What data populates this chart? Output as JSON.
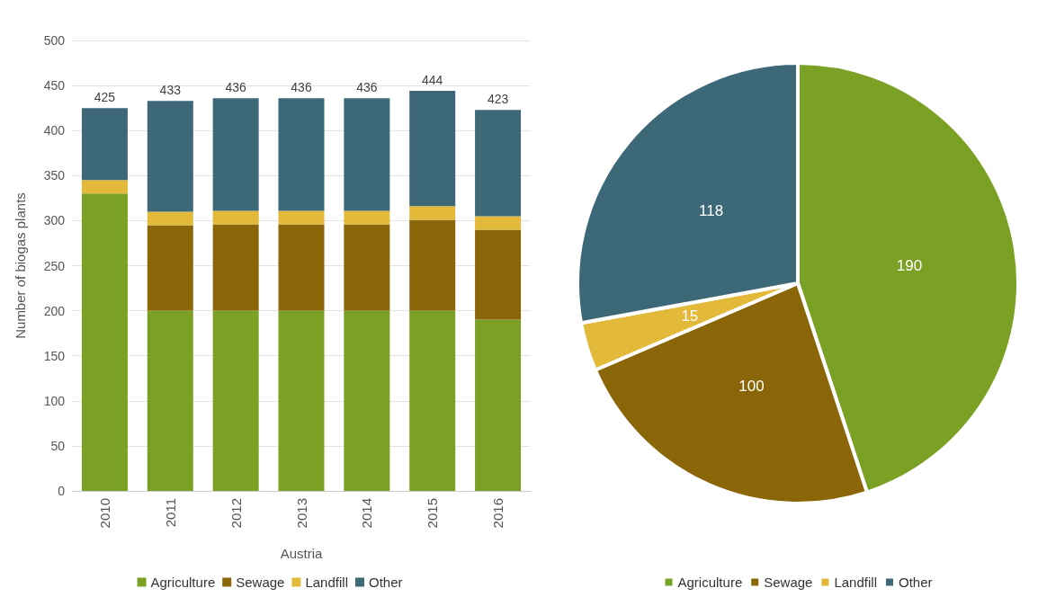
{
  "chart_data": [
    {
      "type": "bar",
      "stacked": true,
      "xlabel": "Austria",
      "ylabel": "Number of biogas plants",
      "categories": [
        "2010",
        "2011",
        "2012",
        "2013",
        "2014",
        "2015",
        "2016"
      ],
      "series": [
        {
          "name": "Agriculture",
          "color": "#7aa024",
          "values": [
            330,
            200,
            200,
            200,
            200,
            200,
            190
          ]
        },
        {
          "name": "Sewage",
          "color": "#8a6609",
          "values": [
            0,
            95,
            96,
            96,
            96,
            101,
            100
          ]
        },
        {
          "name": "Landfill",
          "color": "#e3b93a",
          "values": [
            15,
            15,
            15,
            15,
            15,
            15,
            15
          ]
        },
        {
          "name": "Other",
          "color": "#3d6878",
          "values": [
            80,
            123,
            125,
            125,
            125,
            128,
            118
          ]
        }
      ],
      "totals": [
        "425",
        "433",
        "436",
        "436",
        "436",
        "444",
        "423"
      ],
      "ylim": [
        0,
        500
      ],
      "yticks": [
        0,
        50,
        100,
        150,
        200,
        250,
        300,
        350,
        400,
        450,
        500
      ],
      "grid": "y",
      "legend": "bottom"
    },
    {
      "type": "pie",
      "categories": [
        "Agriculture",
        "Sewage",
        "Landfill",
        "Other"
      ],
      "values": [
        190,
        100,
        15,
        118
      ],
      "colors": [
        "#7aa024",
        "#8a6609",
        "#e3b93a",
        "#3d6878"
      ],
      "data_labels": true,
      "legend": "bottom"
    }
  ]
}
